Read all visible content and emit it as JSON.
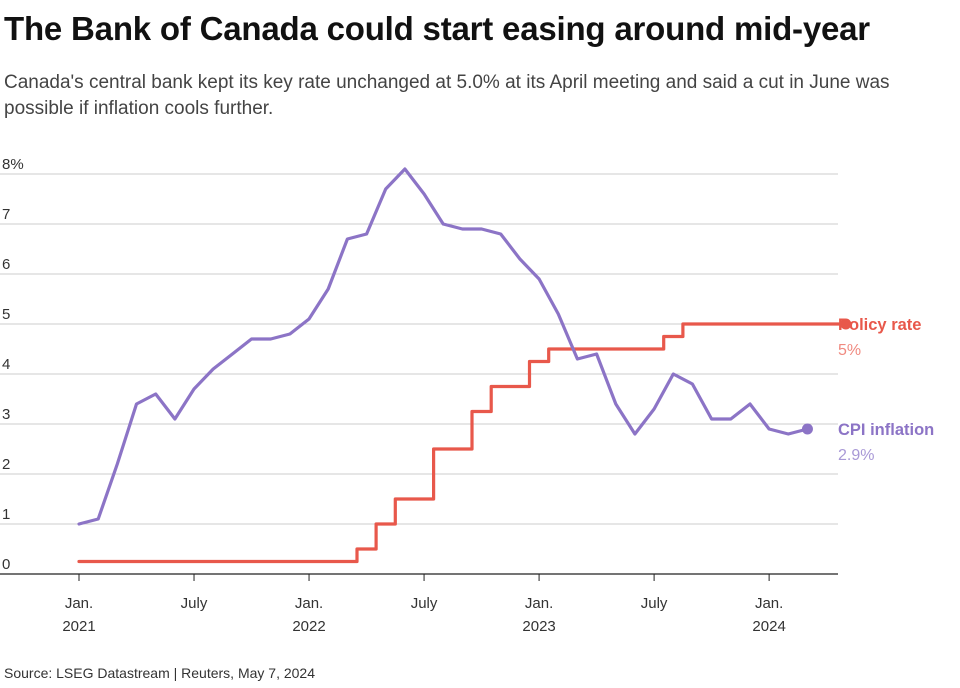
{
  "title": "The Bank of Canada could start easing around mid-year",
  "subtitle": "Canada's central bank kept its key rate unchanged at 5.0% at its April meeting and said a cut in June was possible if inflation cools further.",
  "source": "Source: LSEG Datastream | Reuters, May 7, 2024",
  "colors": {
    "policy": "#e8584b",
    "policy_light": "#f08a80",
    "cpi": "#8c74c6",
    "cpi_light": "#a898d6",
    "grid": "#cccccc",
    "axis": "#222222"
  },
  "chart_data": {
    "type": "line",
    "ylim": [
      0,
      8
    ],
    "y_ticks": [
      "0",
      "1",
      "2",
      "3",
      "4",
      "5",
      "6",
      "7",
      "8%"
    ],
    "x_ticks": [
      {
        "month": 0,
        "line1": "Jan.",
        "line2": "2021"
      },
      {
        "month": 6,
        "line1": "July",
        "line2": ""
      },
      {
        "month": 12,
        "line1": "Jan.",
        "line2": "2022"
      },
      {
        "month": 18,
        "line1": "July",
        "line2": ""
      },
      {
        "month": 24,
        "line1": "Jan.",
        "line2": "2023"
      },
      {
        "month": 30,
        "line1": "July",
        "line2": ""
      },
      {
        "month": 36,
        "line1": "Jan.",
        "line2": "2024"
      }
    ],
    "series": [
      {
        "name": "Policy rate",
        "end_label": "5%",
        "step": true,
        "points": [
          [
            0,
            0.25
          ],
          [
            14.5,
            0.25
          ],
          [
            14.5,
            0.5
          ],
          [
            15.5,
            0.5
          ],
          [
            15.5,
            1.0
          ],
          [
            16.5,
            1.0
          ],
          [
            16.5,
            1.5
          ],
          [
            18.5,
            1.5
          ],
          [
            18.5,
            2.5
          ],
          [
            20.5,
            2.5
          ],
          [
            20.5,
            3.25
          ],
          [
            21.5,
            3.25
          ],
          [
            21.5,
            3.75
          ],
          [
            23.5,
            3.75
          ],
          [
            23.5,
            4.25
          ],
          [
            24.5,
            4.25
          ],
          [
            24.5,
            4.5
          ],
          [
            30.5,
            4.5
          ],
          [
            30.5,
            4.75
          ],
          [
            31.5,
            4.75
          ],
          [
            31.5,
            5.0
          ],
          [
            40.0,
            5.0
          ]
        ]
      },
      {
        "name": "CPI inflation",
        "end_label": "2.9%",
        "step": false,
        "points": [
          [
            0,
            1.0
          ],
          [
            1,
            1.1
          ],
          [
            2,
            2.2
          ],
          [
            3,
            3.4
          ],
          [
            4,
            3.6
          ],
          [
            5,
            3.1
          ],
          [
            6,
            3.7
          ],
          [
            7,
            4.1
          ],
          [
            8,
            4.4
          ],
          [
            9,
            4.7
          ],
          [
            10,
            4.7
          ],
          [
            11,
            4.8
          ],
          [
            12,
            5.1
          ],
          [
            13,
            5.7
          ],
          [
            14,
            6.7
          ],
          [
            15,
            6.8
          ],
          [
            16,
            7.7
          ],
          [
            17,
            8.1
          ],
          [
            18,
            7.6
          ],
          [
            19,
            7.0
          ],
          [
            20,
            6.9
          ],
          [
            21,
            6.9
          ],
          [
            22,
            6.8
          ],
          [
            23,
            6.3
          ],
          [
            24,
            5.9
          ],
          [
            25,
            5.2
          ],
          [
            26,
            4.3
          ],
          [
            27,
            4.4
          ],
          [
            28,
            3.4
          ],
          [
            29,
            2.8
          ],
          [
            30,
            3.3
          ],
          [
            31,
            4.0
          ],
          [
            32,
            3.8
          ],
          [
            33,
            3.1
          ],
          [
            34,
            3.1
          ],
          [
            35,
            3.4
          ],
          [
            36,
            2.9
          ],
          [
            37,
            2.8
          ],
          [
            38,
            2.9
          ]
        ]
      }
    ]
  }
}
